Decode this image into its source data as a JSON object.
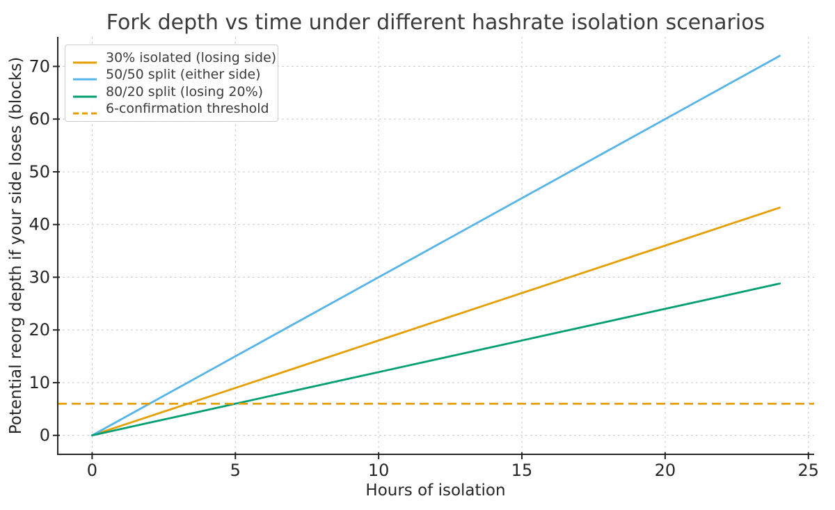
{
  "chart_data": {
    "type": "line",
    "title": "Fork depth vs time under different hashrate isolation scenarios",
    "xlabel": "Hours of isolation",
    "ylabel": "Potential reorg depth if your side loses (blocks)",
    "x": [
      0,
      2,
      4,
      6,
      8,
      10,
      12,
      14,
      16,
      18,
      20,
      22,
      24
    ],
    "series": [
      {
        "name": "30% isolated (losing side)",
        "color": "#E69F00",
        "line_style": "solid",
        "blocks_per_hour": 1.8,
        "values": [
          0,
          3.6,
          7.2,
          10.8,
          14.4,
          18,
          21.6,
          25.2,
          28.8,
          32.4,
          36,
          39.6,
          43.2
        ]
      },
      {
        "name": "50/50 split (either side)",
        "color": "#56B4E9",
        "line_style": "solid",
        "blocks_per_hour": 3,
        "values": [
          0,
          6,
          12,
          18,
          24,
          30,
          36,
          42,
          48,
          54,
          60,
          66,
          72
        ]
      },
      {
        "name": "80/20 split (losing 20%)",
        "color": "#009E73",
        "line_style": "solid",
        "blocks_per_hour": 1.2,
        "values": [
          0,
          2.4,
          4.8,
          7.2,
          9.6,
          12,
          14.4,
          16.8,
          19.2,
          21.6,
          24,
          26.4,
          28.8
        ]
      }
    ],
    "threshold": {
      "name": "6-confirmation threshold",
      "value": 6,
      "color": "#E69F00",
      "line_style": "dashed"
    },
    "xtick_labels": [
      "0",
      "5",
      "10",
      "15",
      "20",
      "25"
    ],
    "xtick_values": [
      0,
      5,
      10,
      15,
      20,
      25
    ],
    "ytick_labels": [
      "0",
      "10",
      "20",
      "30",
      "40",
      "50",
      "60",
      "70"
    ],
    "ytick_values": [
      0,
      10,
      20,
      30,
      40,
      50,
      60,
      70
    ],
    "xlim": [
      -1.2,
      25.2
    ],
    "ylim": [
      -3.6,
      75.6
    ],
    "grid": "dashed",
    "grid_color": "#cccccc",
    "axis_color": "#262626",
    "legend_position": "upper-left"
  }
}
